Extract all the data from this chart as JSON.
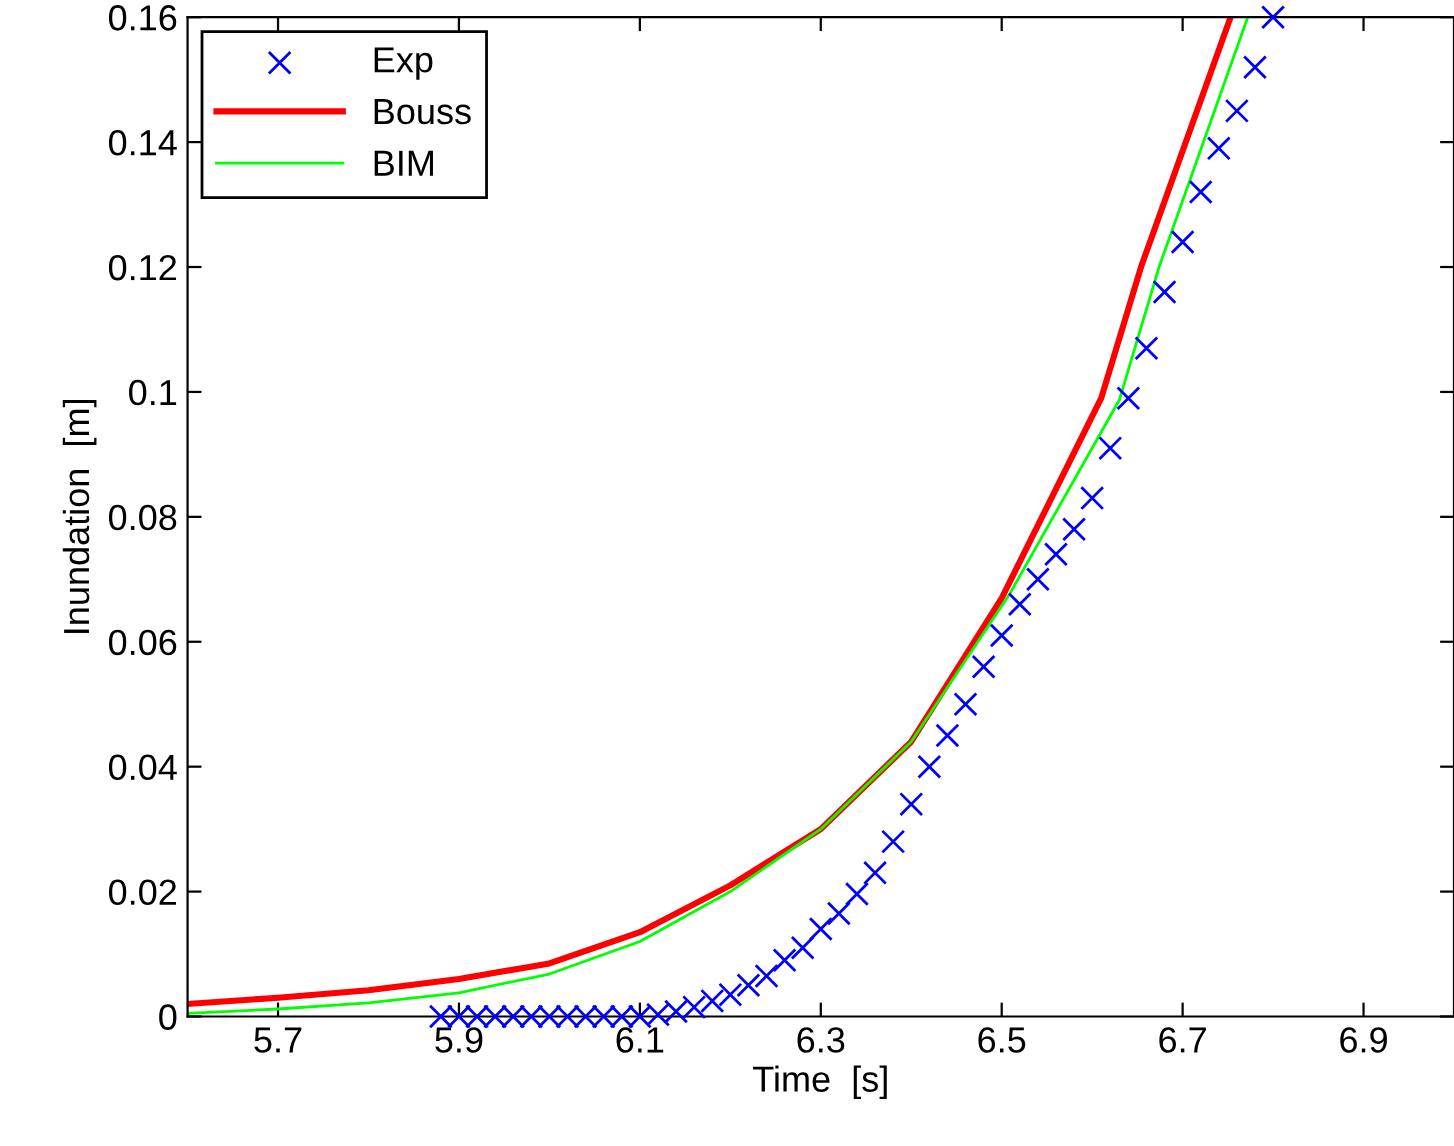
{
  "chart_data": {
    "type": "line",
    "xlabel": "Time  [s]",
    "ylabel": "Inundation  [m]",
    "xlim": [
      5.6,
      7.0
    ],
    "ylim": [
      0,
      0.16
    ],
    "xticks": [
      5.7,
      5.9,
      6.1,
      6.3,
      6.5,
      6.7,
      6.9
    ],
    "yticks": [
      0,
      0.02,
      0.04,
      0.06,
      0.08,
      0.1,
      0.12,
      0.14,
      0.16
    ],
    "grid": false,
    "legend": "top left",
    "series": [
      {
        "name": "Exp",
        "type": "scatter",
        "marker": "cross",
        "color": "#0000ff",
        "x": [
          5.88,
          5.9,
          5.92,
          5.94,
          5.96,
          5.98,
          6.0,
          6.02,
          6.04,
          6.06,
          6.08,
          6.1,
          6.12,
          6.14,
          6.16,
          6.18,
          6.2,
          6.22,
          6.24,
          6.26,
          6.28,
          6.3,
          6.32,
          6.34,
          6.36,
          6.38,
          6.4,
          6.42,
          6.44,
          6.46,
          6.48,
          6.5,
          6.52,
          6.54,
          6.56,
          6.58,
          6.6,
          6.62,
          6.64,
          6.66,
          6.68,
          6.7,
          6.72,
          6.74,
          6.76,
          6.78,
          6.8
        ],
        "values": [
          0,
          0,
          0,
          0,
          0,
          0,
          0,
          0,
          0,
          0,
          0,
          0,
          0.0003,
          0.0008,
          0.0015,
          0.0025,
          0.0035,
          0.005,
          0.0065,
          0.009,
          0.011,
          0.014,
          0.0165,
          0.0196,
          0.023,
          0.028,
          0.034,
          0.04,
          0.045,
          0.05,
          0.056,
          0.061,
          0.066,
          0.07,
          0.074,
          0.078,
          0.083,
          0.091,
          0.099,
          0.107,
          0.116,
          0.124,
          0.132,
          0.139,
          0.145,
          0.152,
          0.16
        ]
      },
      {
        "name": "Bouss",
        "line_style": "solid",
        "color": "#ff0000",
        "x": [
          5.6,
          5.7,
          5.8,
          5.9,
          6.0,
          6.1,
          6.2,
          6.3,
          6.4,
          6.5,
          6.61,
          6.654,
          6.753
        ],
        "values": [
          0.002,
          0.003,
          0.0042,
          0.006,
          0.0085,
          0.0135,
          0.021,
          0.03,
          0.044,
          0.067,
          0.099,
          0.12,
          0.16
        ]
      },
      {
        "name": "BIM",
        "line_style": "solid",
        "color": "#00ff00",
        "x": [
          5.6,
          5.7,
          5.8,
          5.9,
          6.0,
          6.1,
          6.2,
          6.3,
          6.4,
          6.509,
          6.63,
          6.674,
          6.772
        ],
        "values": [
          0.0005,
          0.0012,
          0.0022,
          0.0038,
          0.0068,
          0.012,
          0.02,
          0.03,
          0.044,
          0.0677,
          0.0987,
          0.12,
          0.16
        ]
      }
    ]
  }
}
